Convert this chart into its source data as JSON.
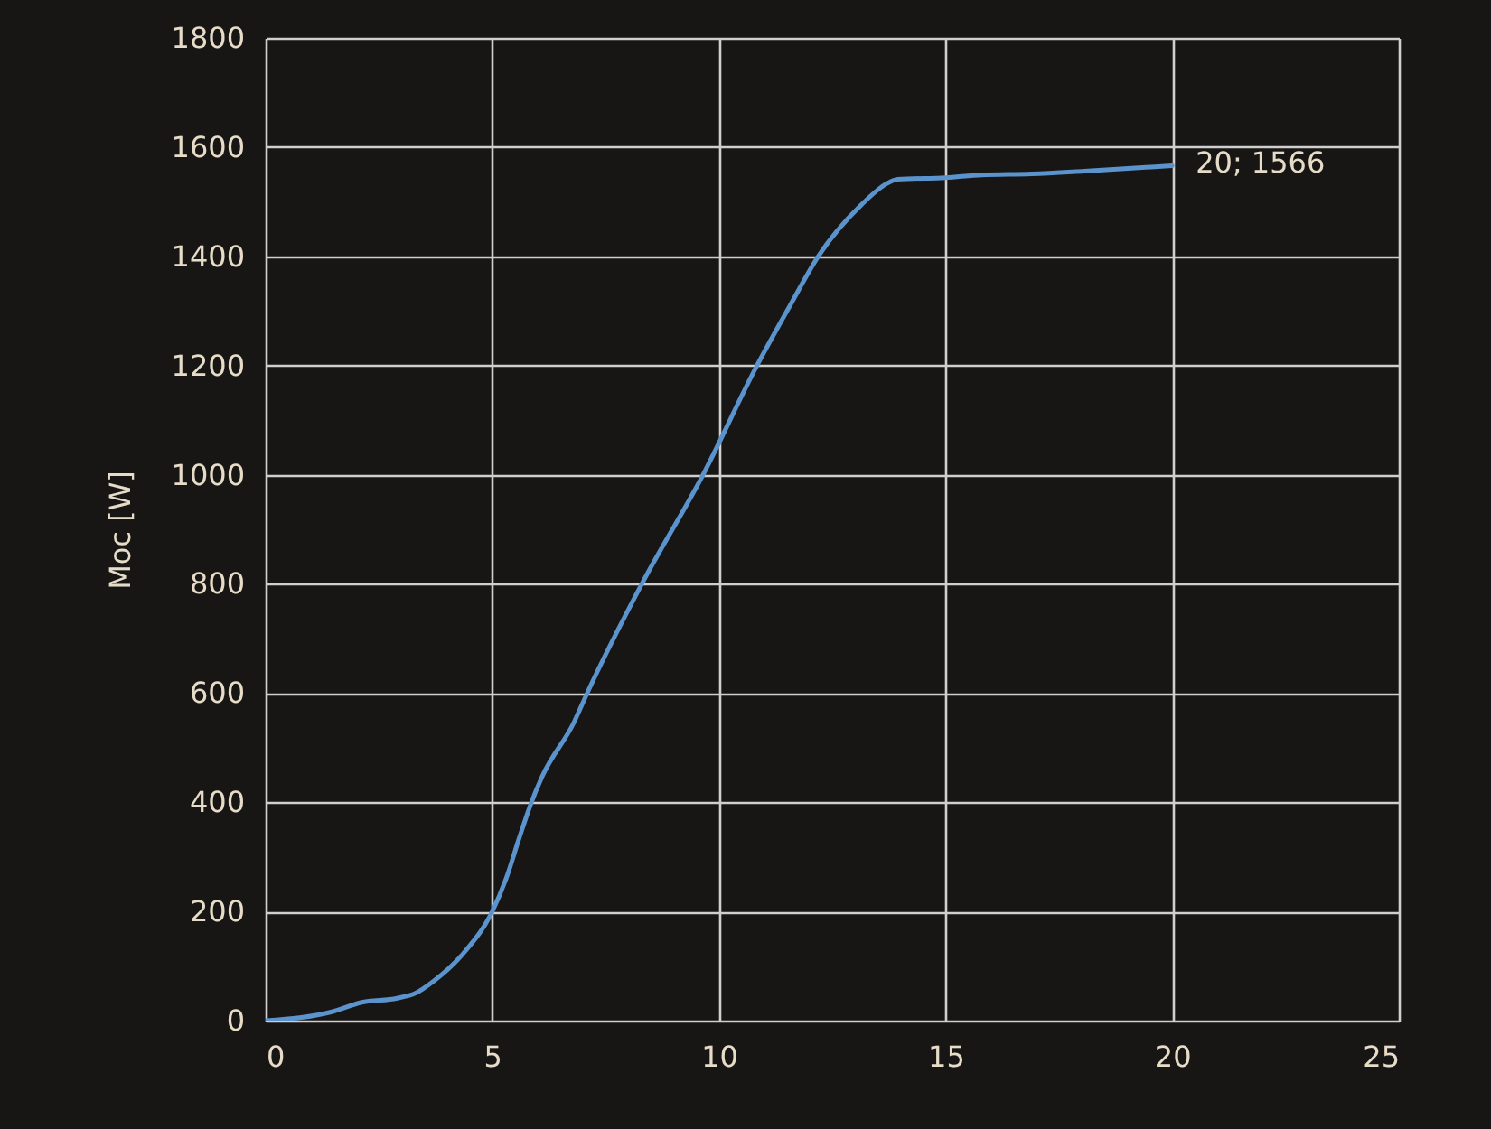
{
  "chart_data": {
    "type": "line",
    "ylabel": "Moc [W]",
    "x": [
      0,
      1.5,
      2.1,
      2.9,
      3.3,
      3.7,
      4.4,
      5,
      5.3,
      5.6,
      5.85,
      6.1,
      6.8,
      7.1,
      8.3,
      9.65,
      10.84,
      11.55,
      12.2,
      13.15,
      13.7,
      13.94,
      15,
      15.8,
      16.9,
      18.06,
      20
    ],
    "series": [
      {
        "color": "#5b93cc",
        "values": [
          0,
          17,
          33,
          41,
          50,
          72,
          127,
          200,
          259,
          336,
          397,
          447,
          546,
          601,
          800,
          1000,
          1200,
          1307,
          1401,
          1495,
          1533,
          1541,
          1544,
          1549,
          1551,
          1556,
          1566
        ]
      }
    ],
    "xlim": [
      0,
      25
    ],
    "xticks": [
      0,
      5,
      10,
      15,
      20,
      25
    ],
    "ylim": [
      0,
      1800
    ],
    "yticks": [
      0,
      200,
      400,
      600,
      800,
      1000,
      1200,
      1400,
      1600,
      1800
    ],
    "grid": true,
    "annotations": [
      {
        "text": "20; 1566",
        "x": 20,
        "y": 1566
      }
    ]
  }
}
